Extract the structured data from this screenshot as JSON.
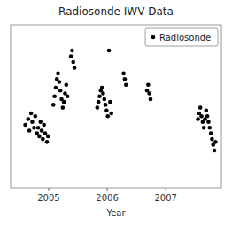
{
  "chart_data": {
    "type": "scatter",
    "title": "Radiosonde IWV Data",
    "x_label": "Year",
    "x": [
      2004.6,
      2004.65,
      2004.67,
      2004.7,
      2004.72,
      2004.75,
      2004.77,
      2004.8,
      2004.82,
      2004.84,
      2004.86,
      2004.88,
      2004.9,
      2004.92,
      2004.94,
      2004.97,
      2004.99,
      2005.08,
      2005.1,
      2005.12,
      2005.14,
      2005.16,
      2005.18,
      2005.2,
      2005.22,
      2005.24,
      2005.26,
      2005.28,
      2005.3,
      2005.32,
      2005.38,
      2005.4,
      2005.42,
      2005.44,
      2005.83,
      2005.85,
      2005.87,
      2005.89,
      2005.91,
      2005.93,
      2005.95,
      2005.97,
      2005.99,
      2006.01,
      2006.03,
      2006.05,
      2006.07,
      2006.28,
      2006.3,
      2006.32,
      2006.68,
      2006.7,
      2006.72,
      2006.74,
      2007.55,
      2007.57,
      2007.59,
      2007.61,
      2007.63,
      2007.65,
      2007.67,
      2007.69,
      2007.71,
      2007.73,
      2007.75,
      2007.77,
      2007.79,
      2007.81,
      2007.83,
      2007.85
    ],
    "series": [
      {
        "name": "Radiosonde",
        "color": "#000000",
        "values": [
          20,
          22,
          18,
          24,
          21,
          19,
          23,
          17,
          19,
          16,
          21,
          18,
          15,
          20,
          17,
          14,
          16,
          27,
          30,
          33,
          36,
          38,
          35,
          32,
          29,
          26,
          28,
          31,
          34,
          30,
          44,
          46,
          42,
          40,
          26,
          28,
          30,
          32,
          33,
          31,
          29,
          27,
          25,
          23,
          46,
          28,
          24,
          38,
          36,
          34,
          32,
          34,
          31,
          29,
          22,
          24,
          26,
          23,
          21,
          19,
          22,
          25,
          23,
          21,
          19,
          17,
          15,
          13,
          11,
          14
        ]
      }
    ],
    "xlim": [
      2004.35,
      2007.95
    ],
    "ylim": [
      -2,
      55
    ],
    "xticks": [
      2005,
      2006,
      2007
    ],
    "tick_labels": "x",
    "grid": false,
    "legend": "upper right"
  }
}
